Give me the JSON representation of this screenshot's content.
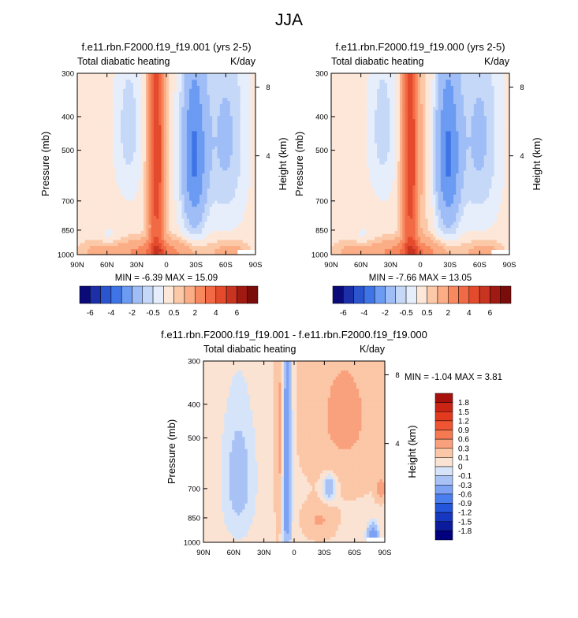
{
  "page": {
    "suptitle": "JJA"
  },
  "palettes": {
    "full": [
      "#0a0a78",
      "#1c2ea8",
      "#2a55cf",
      "#3f74e6",
      "#6b9bf2",
      "#9fbdf6",
      "#c6d8f8",
      "#e6eefc",
      "#fde7d8",
      "#fcc9a8",
      "#fbad86",
      "#f8895f",
      "#f26a45",
      "#e44b2c",
      "#c83420",
      "#a01a12",
      "#7a0c0a"
    ],
    "diff": [
      "#00007f",
      "#0c1a9c",
      "#1638c0",
      "#2456dc",
      "#4a7ded",
      "#7ea2f3",
      "#a9c2f6",
      "#d6e4fa",
      "#fbe3d3",
      "#fbc7a7",
      "#f9a17c",
      "#f57a52",
      "#ef5532",
      "#e23a1f",
      "#c92414",
      "#a8100b"
    ]
  },
  "panels": [
    {
      "title": "f.e11.rbn.F2000.f19_f19.001 (yrs 2-5)",
      "left_label": "Total diabatic heating",
      "right_label": "K/day",
      "ylabel": "Pressure (mb)",
      "right_axis_label": "Height (km)",
      "minmax": "MIN =  -6.39   MAX =  15.09",
      "colorbar_labels": [
        "-6",
        "-4",
        "-2",
        "-0.5",
        "0.5",
        "2",
        "4",
        "6"
      ]
    },
    {
      "title": "f.e11.rbn.F2000.f19_f19.000 (yrs 2-5)",
      "left_label": "Total diabatic heating",
      "right_label": "K/day",
      "ylabel": "Pressure (mb)",
      "right_axis_label": "Height (km)",
      "minmax": "MIN =  -7.66   MAX =  13.05",
      "colorbar_labels": [
        "-6",
        "-4",
        "-2",
        "-0.5",
        "0.5",
        "2",
        "4",
        "6"
      ]
    },
    {
      "title": "f.e11.rbn.F2000.f19_f19.001 - f.e11.rbn.F2000.f19_f19.000",
      "left_label": "Total diabatic heating",
      "right_label": "K/day",
      "ylabel": "Pressure (mb)",
      "right_axis_label": "Height (km)",
      "minmax": "MIN =  -1.04   MAX =   3.81",
      "colorbar_labels": [
        "1.8",
        "1.5",
        "1.2",
        "0.9",
        "0.6",
        "0.3",
        "0.1",
        "0",
        "-0.1",
        "-0.3",
        "-0.6",
        "-0.9",
        "-1.2",
        "-1.5",
        "-1.8"
      ]
    }
  ],
  "chart_data": [
    {
      "type": "heatmap",
      "title": "f.e11.rbn.F2000.f19_f19.001 (yrs 2-5)",
      "subtitle_left": "Total diabatic heating",
      "units": "K/day",
      "ylabel": "Pressure (mb)",
      "y2label": "Height (km)",
      "x_ticks": [
        "90N",
        "60N",
        "30N",
        "0",
        "30S",
        "60S",
        "90S"
      ],
      "x_range": [
        90,
        -90
      ],
      "y_ticks": [
        300,
        400,
        500,
        700,
        850,
        1000
      ],
      "y_range": [
        1000,
        300
      ],
      "y_scale": "log",
      "y2_ticks": [
        8,
        4
      ],
      "min": -6.39,
      "max": 15.09,
      "levels": [
        -6,
        -5,
        -4,
        -3,
        -2,
        -1,
        -0.5,
        0,
        0.5,
        1,
        2,
        3,
        4,
        5,
        6
      ]
    },
    {
      "type": "heatmap",
      "title": "f.e11.rbn.F2000.f19_f19.000 (yrs 2-5)",
      "subtitle_left": "Total diabatic heating",
      "units": "K/day",
      "ylabel": "Pressure (mb)",
      "y2label": "Height (km)",
      "x_ticks": [
        "90N",
        "60N",
        "30N",
        "0",
        "30S",
        "60S",
        "90S"
      ],
      "x_range": [
        90,
        -90
      ],
      "y_ticks": [
        300,
        400,
        500,
        700,
        850,
        1000
      ],
      "y_range": [
        1000,
        300
      ],
      "y_scale": "log",
      "y2_ticks": [
        8,
        4
      ],
      "min": -7.66,
      "max": 13.05,
      "levels": [
        -6,
        -5,
        -4,
        -3,
        -2,
        -1,
        -0.5,
        0,
        0.5,
        1,
        2,
        3,
        4,
        5,
        6
      ]
    },
    {
      "type": "heatmap",
      "title": "f.e11.rbn.F2000.f19_f19.001 - f.e11.rbn.F2000.f19_f19.000",
      "subtitle_left": "Total diabatic heating",
      "units": "K/day",
      "ylabel": "Pressure (mb)",
      "y2label": "Height (km)",
      "x_ticks": [
        "90N",
        "60N",
        "30N",
        "0",
        "30S",
        "60S",
        "90S"
      ],
      "x_range": [
        90,
        -90
      ],
      "y_ticks": [
        300,
        400,
        500,
        700,
        850,
        1000
      ],
      "y_range": [
        1000,
        300
      ],
      "y_scale": "log",
      "y2_ticks": [
        8,
        4
      ],
      "min": -1.04,
      "max": 3.81,
      "levels": [
        -1.8,
        -1.5,
        -1.2,
        -0.9,
        -0.6,
        -0.3,
        -0.1,
        0,
        0.1,
        0.3,
        0.6,
        0.9,
        1.2,
        1.5,
        1.8
      ]
    }
  ]
}
